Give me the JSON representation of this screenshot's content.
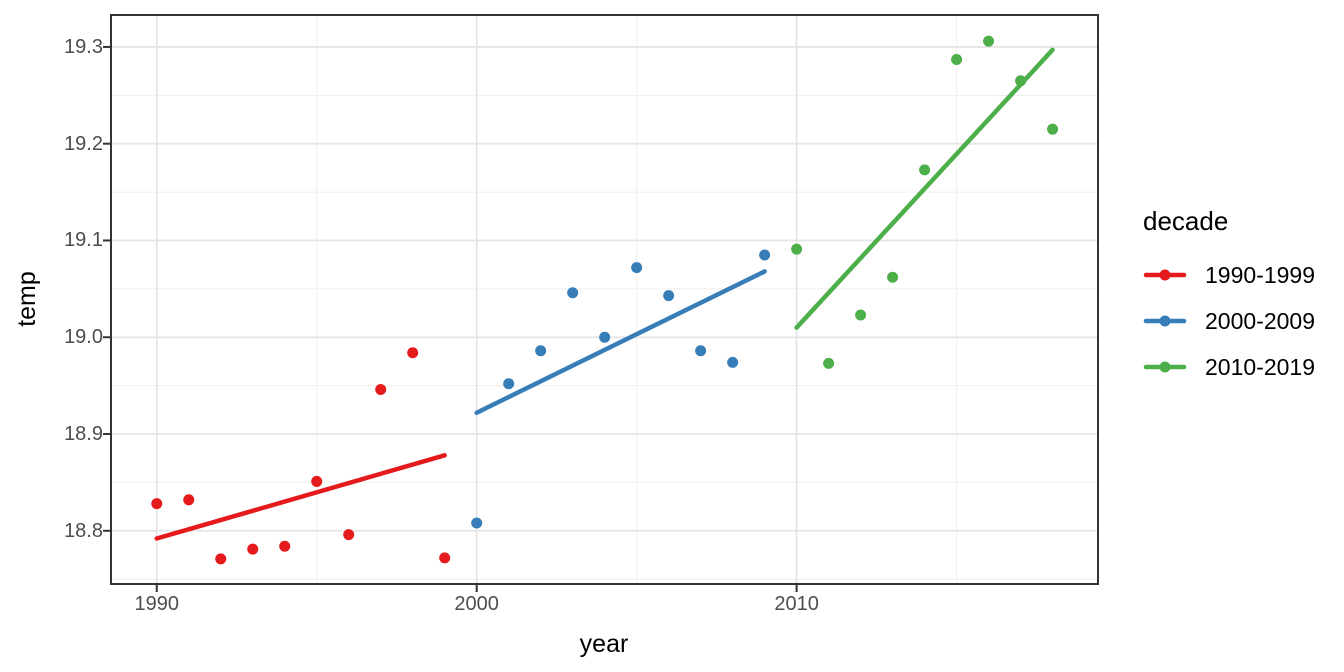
{
  "chart_data": {
    "type": "scatter",
    "title": "",
    "xlabel": "year",
    "ylabel": "temp",
    "x_domain": [
      1988.57,
      2019.42
    ],
    "y_domain": [
      18.745,
      19.333
    ],
    "grid": true,
    "x_ticks": [
      {
        "value": 1990,
        "label": "1990"
      },
      {
        "value": 2000,
        "label": "2000"
      },
      {
        "value": 2010,
        "label": "2010"
      }
    ],
    "x_minor_ticks": [
      1995,
      2005,
      2015
    ],
    "y_ticks": [
      {
        "value": 18.8,
        "label": "18.8"
      },
      {
        "value": 18.9,
        "label": "18.9"
      },
      {
        "value": 19.0,
        "label": "19.0"
      },
      {
        "value": 19.1,
        "label": "19.1"
      },
      {
        "value": 19.2,
        "label": "19.2"
      },
      {
        "value": 19.3,
        "label": "19.3"
      }
    ],
    "y_minor_ticks": [
      18.75,
      18.85,
      18.95,
      19.05,
      19.15,
      19.25
    ],
    "legend": {
      "title": "decade",
      "position": "right"
    },
    "series": [
      {
        "name": "1990-1999",
        "color": "#e41a1c",
        "points": [
          [
            1990,
            18.828
          ],
          [
            1991,
            18.832
          ],
          [
            1992,
            18.771
          ],
          [
            1993,
            18.781
          ],
          [
            1994,
            18.784
          ],
          [
            1995,
            18.851
          ],
          [
            1996,
            18.796
          ],
          [
            1997,
            18.946
          ],
          [
            1998,
            18.984
          ],
          [
            1999,
            18.772
          ]
        ],
        "trend": [
          [
            1990,
            18.792
          ],
          [
            1999,
            18.878
          ]
        ]
      },
      {
        "name": "2000-2009",
        "color": "#377eb8",
        "points": [
          [
            2000,
            18.808
          ],
          [
            2001,
            18.952
          ],
          [
            2002,
            18.986
          ],
          [
            2003,
            19.046
          ],
          [
            2004,
            19.0
          ],
          [
            2005,
            19.072
          ],
          [
            2006,
            19.043
          ],
          [
            2007,
            18.986
          ],
          [
            2008,
            18.974
          ],
          [
            2009,
            19.085
          ]
        ],
        "trend": [
          [
            2000,
            18.922
          ],
          [
            2009,
            19.068
          ]
        ]
      },
      {
        "name": "2010-2019",
        "color": "#4daf4a",
        "points": [
          [
            2010,
            19.091
          ],
          [
            2011,
            18.973
          ],
          [
            2012,
            19.023
          ],
          [
            2013,
            19.062
          ],
          [
            2014,
            19.173
          ],
          [
            2015,
            19.287
          ],
          [
            2016,
            19.306
          ],
          [
            2017,
            19.265
          ],
          [
            2018,
            19.215
          ]
        ],
        "trend": [
          [
            2010,
            19.01
          ],
          [
            2018,
            19.297
          ]
        ]
      }
    ],
    "colors": {
      "background": "#ffffff",
      "panel_border": "#333333",
      "grid_major": "#e5e5e5",
      "grid_minor": "#efefef",
      "tick_mark": "#333333",
      "tick_text": "#4d4d4d",
      "axis_title_text": "#000000"
    },
    "style": {
      "point_radius": 5.5,
      "trend_width": 4.5
    }
  }
}
